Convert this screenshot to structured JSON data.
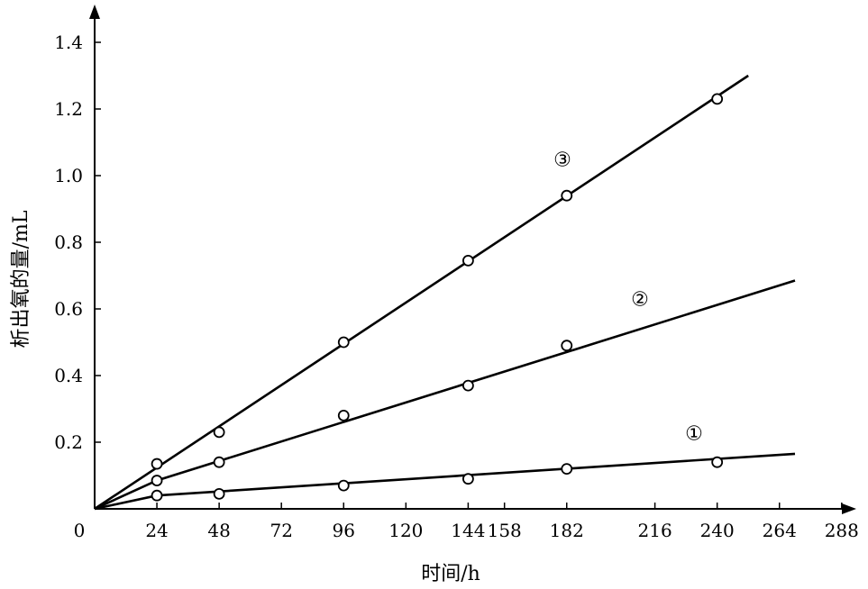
{
  "chart_data": {
    "type": "scatter",
    "xlabel": "时间/h",
    "ylabel": "析出氧的量/mL",
    "origin_label": "0",
    "x_ticks": [
      24,
      48,
      72,
      96,
      120,
      144,
      158,
      182,
      216,
      240,
      264,
      288
    ],
    "x_tick_labels": [
      "24",
      "48",
      "72",
      "96",
      "120",
      "144",
      "158",
      "182",
      "216",
      "240",
      "264",
      "288"
    ],
    "y_ticks": [
      0.2,
      0.4,
      0.6,
      0.8,
      1.0,
      1.2,
      1.4
    ],
    "y_tick_labels": [
      "0.2",
      "0.4",
      "0.6",
      "0.8",
      "1.0",
      "1.2",
      "1.4"
    ],
    "xlim": [
      0,
      288
    ],
    "ylim": [
      0,
      1.4
    ],
    "grid": false,
    "legend": "none",
    "series": [
      {
        "label": "①",
        "points": [
          [
            24,
            0.04
          ],
          [
            48,
            0.045
          ],
          [
            96,
            0.07
          ],
          [
            144,
            0.09
          ],
          [
            182,
            0.12
          ],
          [
            240,
            0.14
          ]
        ],
        "fit_line": [
          [
            0,
            0
          ],
          [
            24,
            0.04
          ],
          [
            270,
            0.165
          ]
        ]
      },
      {
        "label": "②",
        "points": [
          [
            24,
            0.085
          ],
          [
            48,
            0.14
          ],
          [
            96,
            0.28
          ],
          [
            144,
            0.37
          ],
          [
            182,
            0.49
          ]
        ],
        "fit_line": [
          [
            0,
            0
          ],
          [
            24,
            0.085
          ],
          [
            270,
            0.685
          ]
        ]
      },
      {
        "label": "③",
        "points": [
          [
            24,
            0.135
          ],
          [
            48,
            0.23
          ],
          [
            96,
            0.5
          ],
          [
            144,
            0.745
          ],
          [
            182,
            0.94
          ],
          [
            240,
            1.23
          ]
        ],
        "fit_line": [
          [
            0,
            0
          ],
          [
            252,
            1.3
          ]
        ]
      }
    ]
  }
}
